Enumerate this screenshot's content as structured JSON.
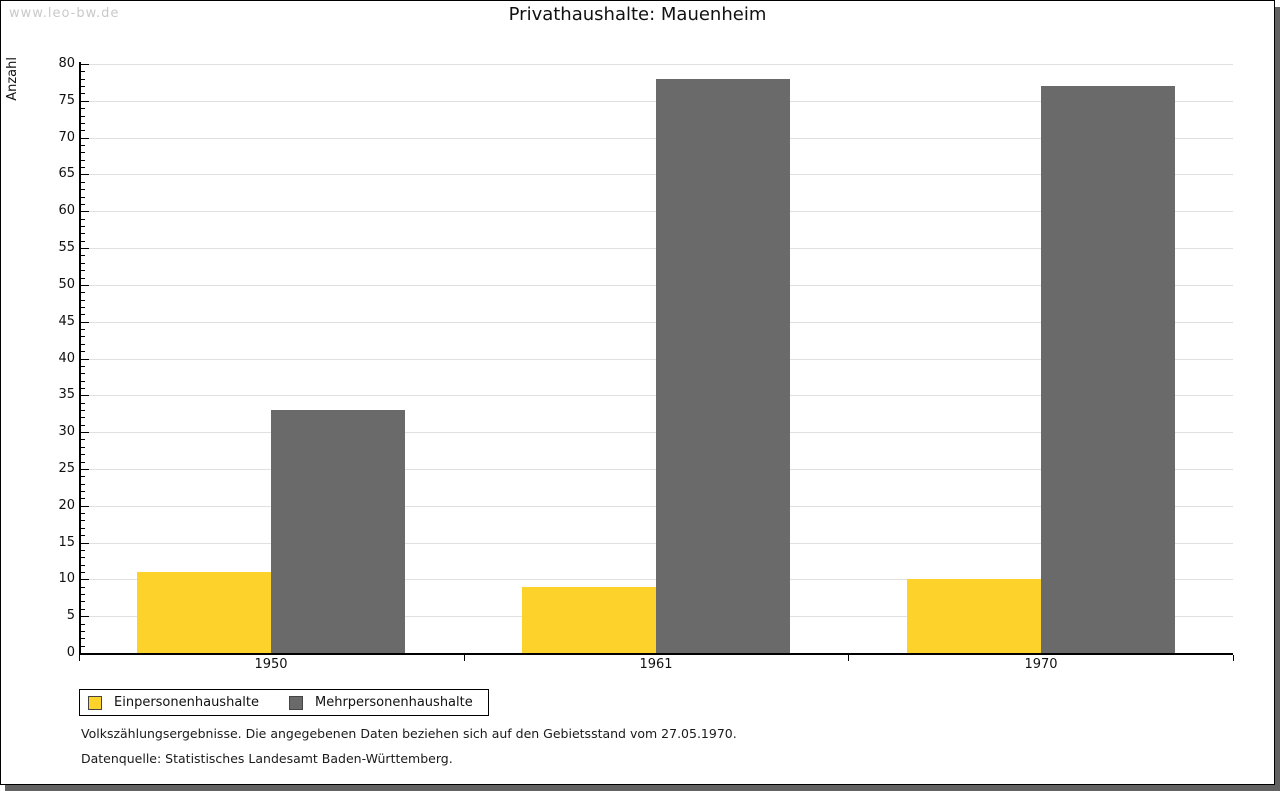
{
  "watermark": "www.leo-bw.de",
  "chart_data": {
    "type": "bar",
    "title": "Privathaushalte: Mauenheim",
    "ylabel": "Anzahl",
    "xlabel": "",
    "categories": [
      "1950",
      "1961",
      "1970"
    ],
    "series": [
      {
        "name": "Einpersonenhaushalte",
        "color": "#FCD22B",
        "values": [
          11,
          9,
          10
        ]
      },
      {
        "name": "Mehrpersonenhaushalte",
        "color": "#6A6A6A",
        "values": [
          33,
          78,
          77
        ]
      }
    ],
    "ylim": [
      0,
      80
    ],
    "ytick_step": 5,
    "yminor_step": 1,
    "grid": true,
    "legend_position": "bottom-left"
  },
  "footnotes": [
    "Volkszählungsergebnisse. Die angegebenen Daten beziehen sich auf den Gebietsstand vom 27.05.1970.",
    "Datenquelle: Statistisches Landesamt Baden-Württemberg."
  ],
  "colors": {
    "grid": "#E0E0E0",
    "axis": "#000000",
    "watermark": "#C9C9C9",
    "page_border": "#000000",
    "shadow": "#626262"
  }
}
